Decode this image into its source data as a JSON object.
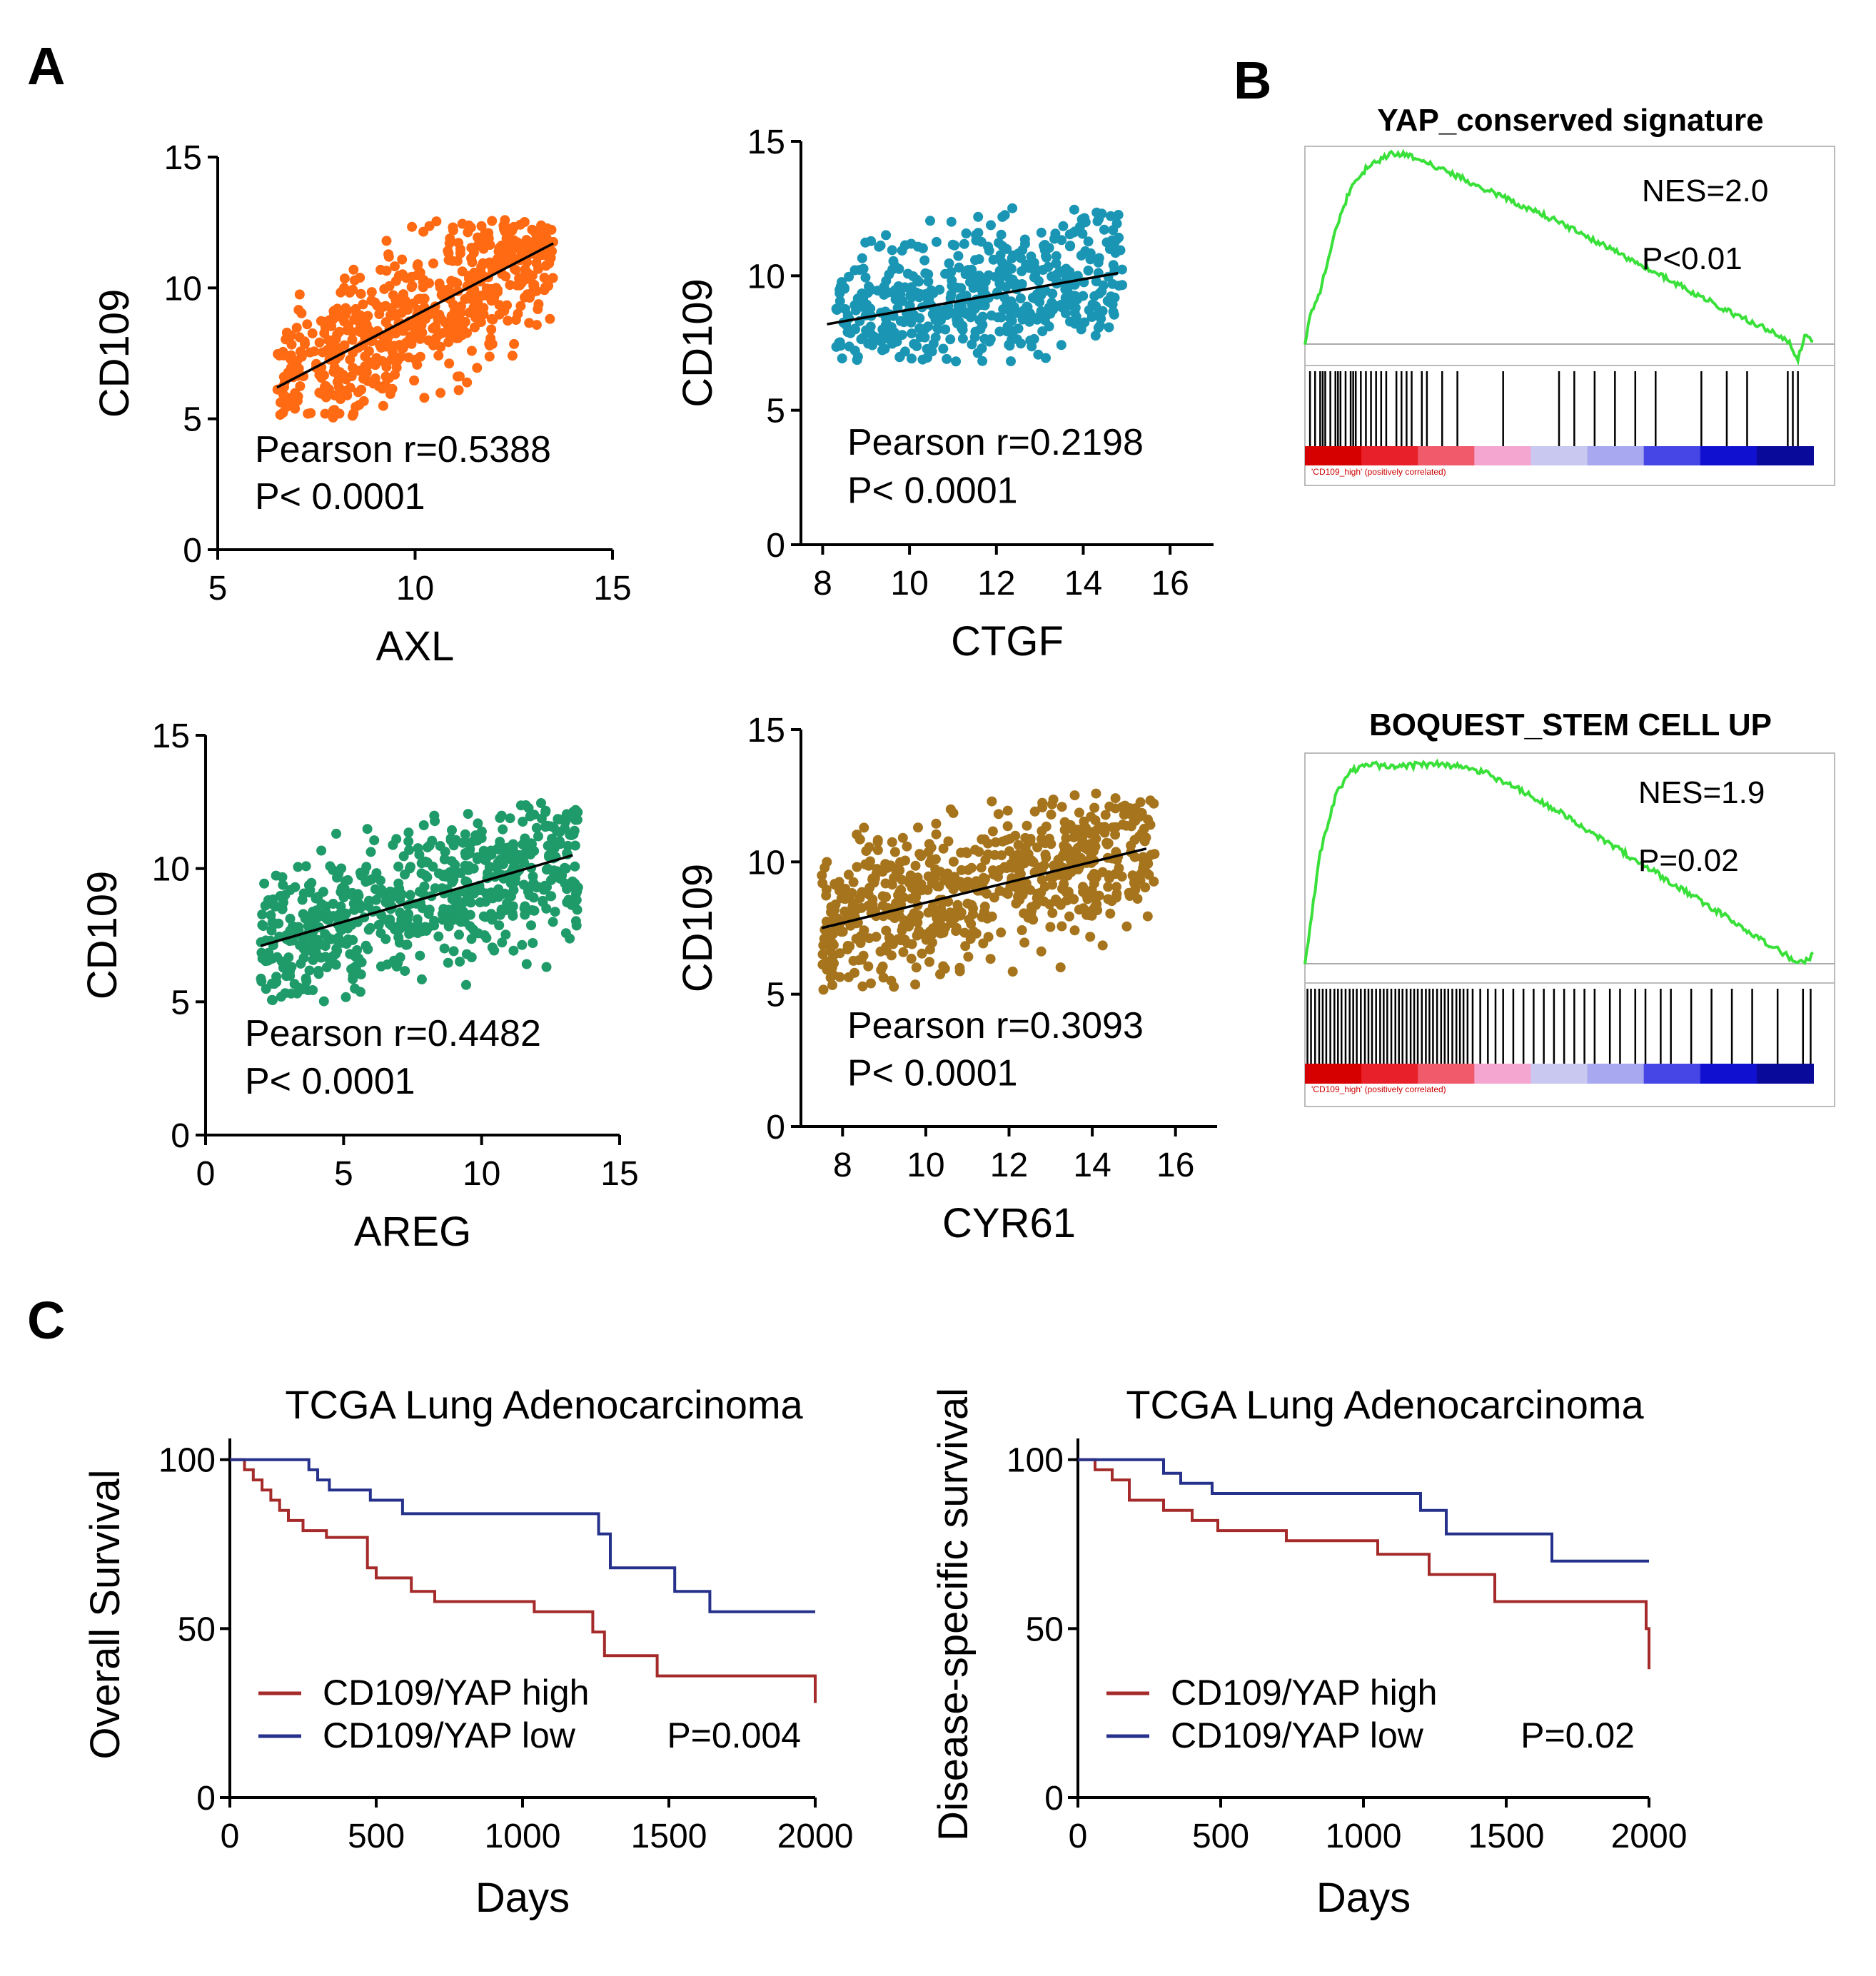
{
  "panels": {
    "a": "A",
    "b": "B",
    "c": "C"
  },
  "chart_data": [
    {
      "id": "scatter_axl",
      "type": "scatter",
      "color": "#ff6a13",
      "xlabel": "AXL",
      "ylabel": "CD109",
      "xlim": [
        5,
        15
      ],
      "ylim": [
        0,
        15
      ],
      "xticks": [
        "5",
        "10",
        "15"
      ],
      "yticks": [
        "0",
        "5",
        "10",
        "15"
      ],
      "xrange": [
        6.5,
        13.5
      ],
      "yrange": [
        5,
        12.6
      ],
      "fit": {
        "x0": 6.5,
        "y0": 6.2,
        "x1": 13.5,
        "y1": 11.7
      },
      "annotations": [
        "Pearson r=0.5388",
        "P< 0.0001"
      ],
      "n_points": 600
    },
    {
      "id": "scatter_ctgf",
      "type": "scatter",
      "color": "#1a96b4",
      "xlabel": "CTGF",
      "ylabel": "CD109",
      "xlim": [
        7.5,
        17
      ],
      "ylim": [
        0,
        15
      ],
      "xticks": [
        "8",
        "10",
        "12",
        "14",
        "16"
      ],
      "yticks": [
        "0",
        "5",
        "10",
        "15"
      ],
      "xrange": [
        8.3,
        14.9
      ],
      "yrange": [
        6.8,
        12.6
      ],
      "fit": {
        "x0": 8.1,
        "y0": 8.2,
        "x1": 14.8,
        "y1": 10.1
      },
      "annotations": [
        "Pearson r=0.2198",
        "P< 0.0001"
      ],
      "n_points": 520
    },
    {
      "id": "scatter_areg",
      "type": "scatter",
      "color": "#1f9a69",
      "xlabel": "AREG",
      "ylabel": "CD109",
      "xlim": [
        0,
        15
      ],
      "ylim": [
        0,
        15
      ],
      "xticks": [
        "0",
        "5",
        "10",
        "15"
      ],
      "yticks": [
        "0",
        "5",
        "10",
        "15"
      ],
      "xrange": [
        2,
        13.5
      ],
      "yrange": [
        5,
        12.6
      ],
      "fit": {
        "x0": 2,
        "y0": 7.1,
        "x1": 13.3,
        "y1": 10.5
      },
      "annotations": [
        "Pearson r=0.4482",
        "P< 0.0001"
      ],
      "n_points": 650
    },
    {
      "id": "scatter_cyr61",
      "type": "scatter",
      "color": "#a5741c",
      "xlabel": "CYR61",
      "ylabel": "CD109",
      "xlim": [
        7,
        17
      ],
      "ylim": [
        0,
        15
      ],
      "xticks": [
        "8",
        "10",
        "12",
        "14",
        "16"
      ],
      "yticks": [
        "0",
        "5",
        "10",
        "15"
      ],
      "xrange": [
        7.5,
        15.5
      ],
      "yrange": [
        5,
        12.6
      ],
      "fit": {
        "x0": 7.5,
        "y0": 7.5,
        "x1": 15.3,
        "y1": 10.5
      },
      "annotations": [
        "Pearson r=0.3093",
        "P< 0.0001"
      ],
      "n_points": 650
    },
    {
      "id": "gsea_yap",
      "type": "line",
      "title": "YAP_conserved signature",
      "annotations": [
        "NES=2.0",
        "P<0.01"
      ],
      "ranked_list_label": "'CD109_high' (positively correlated)",
      "es_curve": {
        "x": [
          0,
          0.01,
          0.03,
          0.06,
          0.09,
          0.12,
          0.15,
          0.17,
          0.2,
          0.25,
          0.3,
          0.35,
          0.4,
          0.45,
          0.5,
          0.55,
          0.6,
          0.65,
          0.7,
          0.75,
          0.8,
          0.85,
          0.9,
          0.95,
          0.97,
          0.985,
          1
        ],
        "y": [
          0,
          0.14,
          0.28,
          0.6,
          0.82,
          0.92,
          0.97,
          1.0,
          0.99,
          0.94,
          0.88,
          0.82,
          0.76,
          0.7,
          0.64,
          0.57,
          0.5,
          0.43,
          0.36,
          0.29,
          0.22,
          0.15,
          0.09,
          0.02,
          -0.08,
          0.05,
          0.0
        ]
      },
      "hits": [
        0.01,
        0.02,
        0.03,
        0.035,
        0.04,
        0.05,
        0.06,
        0.065,
        0.07,
        0.08,
        0.09,
        0.095,
        0.1,
        0.11,
        0.12,
        0.13,
        0.14,
        0.15,
        0.16,
        0.18,
        0.19,
        0.2,
        0.21,
        0.23,
        0.24,
        0.27,
        0.3,
        0.39,
        0.5,
        0.53,
        0.57,
        0.61,
        0.65,
        0.69,
        0.78,
        0.83,
        0.87,
        0.95,
        0.96,
        0.97
      ]
    },
    {
      "id": "gsea_boquest",
      "type": "line",
      "title": "BOQUEST_STEM CELL UP",
      "annotations": [
        "NES=1.9",
        "P=0.02"
      ],
      "ranked_list_label": "'CD109_high' (positively correlated)",
      "es_curve": {
        "x": [
          0,
          0.03,
          0.06,
          0.09,
          0.12,
          0.15,
          0.2,
          0.25,
          0.3,
          0.35,
          0.4,
          0.45,
          0.5,
          0.55,
          0.6,
          0.65,
          0.7,
          0.75,
          0.8,
          0.85,
          0.9,
          0.93,
          0.96,
          0.98,
          1
        ],
        "y": [
          0,
          0.55,
          0.84,
          0.96,
          1.0,
          0.99,
          0.99,
          1.0,
          0.99,
          0.96,
          0.9,
          0.83,
          0.76,
          0.68,
          0.6,
          0.52,
          0.44,
          0.36,
          0.28,
          0.2,
          0.12,
          0.07,
          0.02,
          0.0,
          0.05
        ]
      },
      "hits": [
        0.005,
        0.012,
        0.02,
        0.028,
        0.035,
        0.042,
        0.05,
        0.058,
        0.065,
        0.072,
        0.08,
        0.088,
        0.095,
        0.102,
        0.11,
        0.118,
        0.125,
        0.132,
        0.14,
        0.148,
        0.155,
        0.162,
        0.17,
        0.178,
        0.185,
        0.192,
        0.2,
        0.208,
        0.215,
        0.222,
        0.23,
        0.238,
        0.245,
        0.252,
        0.26,
        0.268,
        0.275,
        0.282,
        0.29,
        0.298,
        0.305,
        0.312,
        0.32,
        0.33,
        0.345,
        0.36,
        0.375,
        0.39,
        0.41,
        0.43,
        0.45,
        0.47,
        0.49,
        0.51,
        0.53,
        0.55,
        0.57,
        0.6,
        0.62,
        0.65,
        0.67,
        0.7,
        0.72,
        0.76,
        0.8,
        0.84,
        0.88,
        0.93,
        0.98,
        0.995
      ]
    },
    {
      "id": "km_overall",
      "type": "line",
      "title": "TCGA Lung Adenocarcinoma",
      "xlabel": "Days",
      "ylabel": "Overall Survival",
      "xlim": [
        0,
        2000
      ],
      "ylim": [
        0,
        100
      ],
      "xticks": [
        "0",
        "500",
        "1000",
        "1500",
        "2000"
      ],
      "yticks": [
        "0",
        "50",
        "100"
      ],
      "pvalue": "P=0.004",
      "series": [
        {
          "name": "CD109/YAP high",
          "color": "#a52a2a",
          "x": [
            0,
            50,
            80,
            110,
            140,
            170,
            200,
            250,
            330,
            470,
            500,
            620,
            700,
            1040,
            1240,
            1280,
            1460,
            1990,
            2000
          ],
          "y": [
            100,
            97,
            94,
            91,
            88,
            85,
            82,
            79,
            77,
            68,
            65,
            61,
            58,
            55,
            49,
            42,
            36,
            36,
            28
          ]
        },
        {
          "name": "CD109/YAP low",
          "color": "#25318a",
          "x": [
            0,
            270,
            300,
            340,
            480,
            590,
            1200,
            1260,
            1300,
            1520,
            1640,
            2000
          ],
          "y": [
            100,
            97,
            94,
            91,
            88,
            84,
            84,
            78,
            68,
            61,
            55,
            55
          ]
        }
      ]
    },
    {
      "id": "km_disease",
      "type": "line",
      "title": "TCGA Lung Adenocarcinoma",
      "xlabel": "Days",
      "ylabel": "Disease-specific survival",
      "xlim": [
        0,
        2000
      ],
      "ylim": [
        0,
        100
      ],
      "xticks": [
        "0",
        "500",
        "1000",
        "1500",
        "2000"
      ],
      "yticks": [
        "0",
        "50",
        "100"
      ],
      "pvalue": "P=0.02",
      "series": [
        {
          "name": "CD109/YAP high",
          "color": "#a52a2a",
          "x": [
            0,
            60,
            120,
            180,
            300,
            400,
            490,
            730,
            1050,
            1230,
            1460,
            1990,
            2000
          ],
          "y": [
            100,
            97,
            94,
            88,
            85,
            82,
            79,
            76,
            72,
            66,
            58,
            50,
            38
          ]
        },
        {
          "name": "CD109/YAP low",
          "color": "#25318a",
          "x": [
            0,
            300,
            360,
            470,
            1200,
            1290,
            1660,
            2000
          ],
          "y": [
            100,
            96,
            93,
            90,
            85,
            78,
            70,
            70
          ]
        }
      ]
    }
  ]
}
